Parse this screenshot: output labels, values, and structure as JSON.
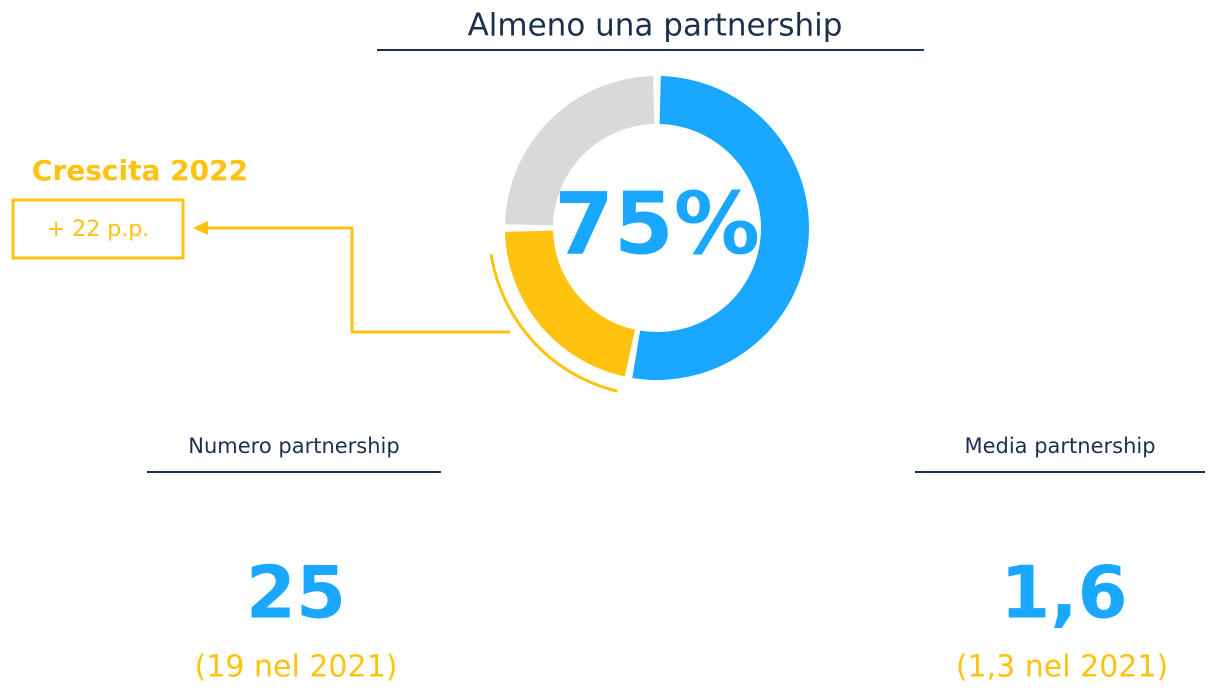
{
  "chart_data": {
    "type": "donut",
    "title": "Almeno una partnership",
    "values": [
      75
    ],
    "value_labels": [
      "75%"
    ],
    "color": "#1aa7ff",
    "rest_color": "#d9d9d9",
    "growth": {
      "title": "Crescita 2022",
      "value": 22,
      "value_label": "+ 22 p.p.",
      "color": "#ffc20e"
    }
  },
  "stats": [
    {
      "title": "Numero partnership",
      "value": "25",
      "note": "(19 nel 2021)"
    },
    {
      "title": "Media partnership",
      "value": "1,6",
      "note": "(1,3 nel 2021)"
    }
  ]
}
